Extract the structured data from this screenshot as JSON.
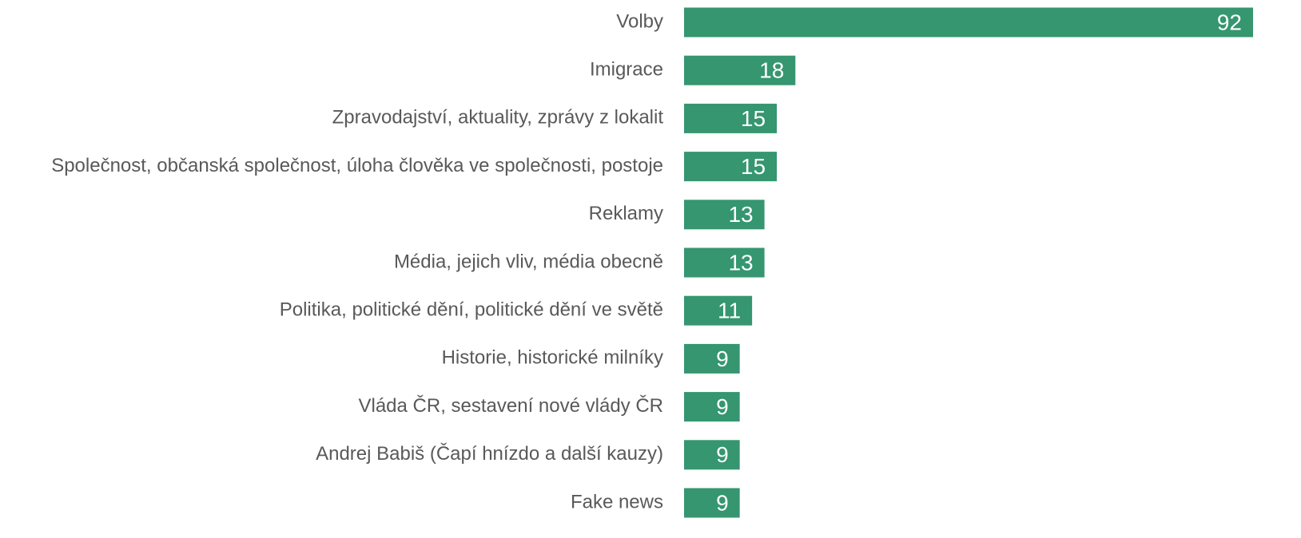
{
  "chart_data": {
    "type": "bar",
    "orientation": "horizontal",
    "categories": [
      "Volby",
      "Imigrace",
      "Zpravodajství, aktuality, zprávy z lokalit",
      "Společnost, občanská společnost, úloha člověka ve společnosti, postoje",
      "Reklamy",
      "Média, jejich vliv, média obecně",
      "Politika, politické dění, politické dění ve světě",
      "Historie, historické milníky",
      "Vláda ČR, sestavení nové vlády ČR",
      "Andrej Babiš (Čapí hnízdo a další kauzy)",
      "Fake news"
    ],
    "values": [
      92,
      18,
      15,
      15,
      13,
      13,
      11,
      9,
      9,
      9,
      9
    ],
    "color": "#359670"
  }
}
